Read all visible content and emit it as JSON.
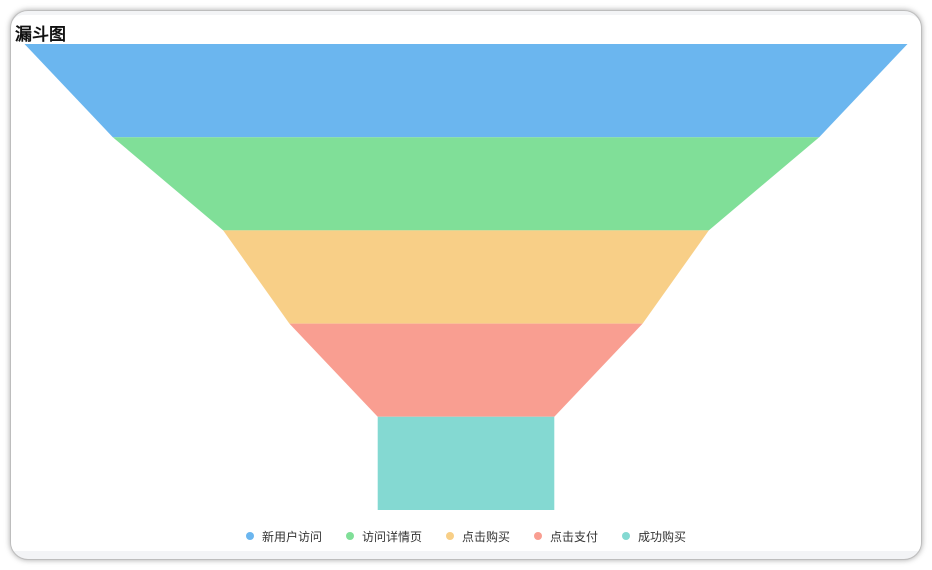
{
  "chart_data": {
    "type": "funnel",
    "title": "漏斗图",
    "categories": [
      "新用户访问",
      "访问详情页",
      "点击购买",
      "点击支付",
      "成功购买"
    ],
    "values": [
      100,
      80,
      55,
      40,
      20
    ],
    "colors": [
      "#6bb6ef",
      "#80df98",
      "#f8cf87",
      "#f99e91",
      "#84d9d2"
    ],
    "legend_position": "bottom"
  }
}
